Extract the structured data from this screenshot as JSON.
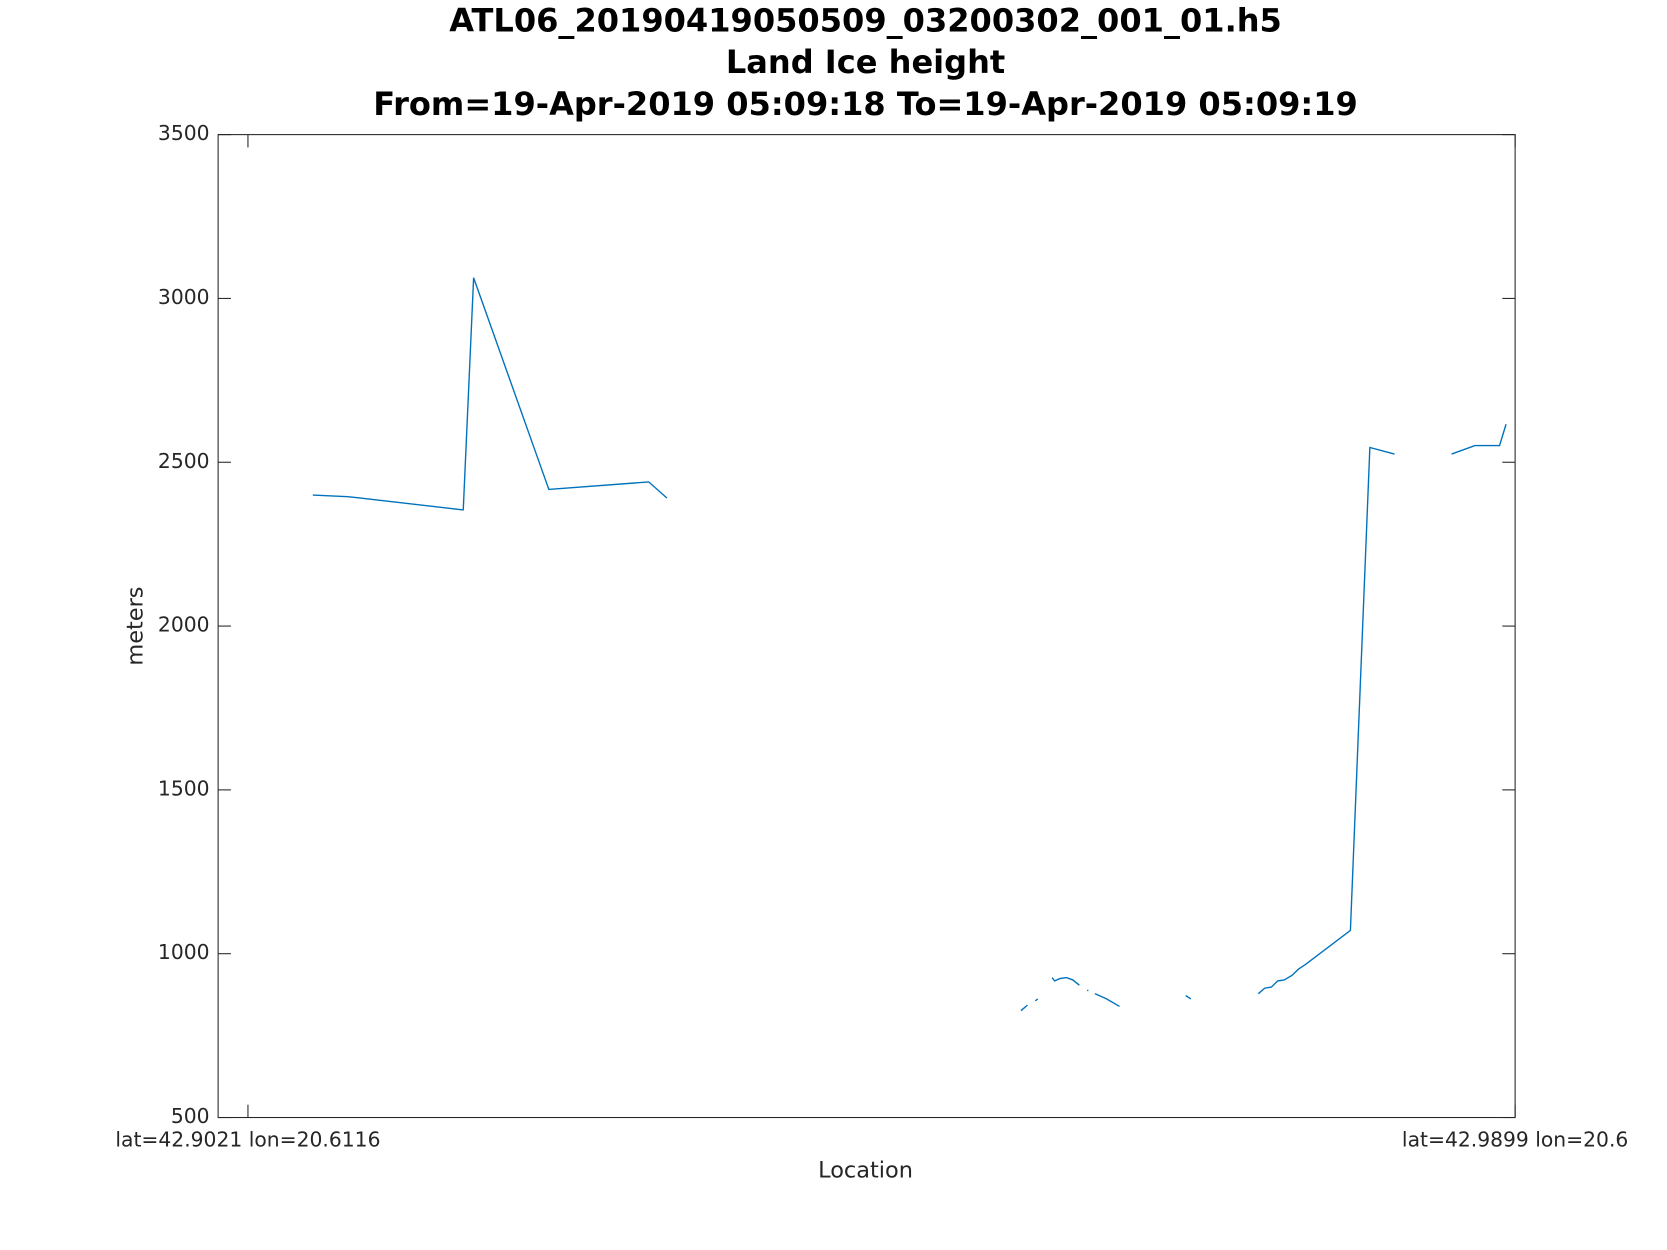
{
  "chart_data": {
    "type": "line",
    "title": [
      "ATL06_20190419050509_03200302_001_01.h5",
      "Land Ice height",
      "From=19-Apr-2019 05:09:18 To=19-Apr-2019 05:09:19"
    ],
    "x_label": "Location",
    "y_label": "meters",
    "xlim": [
      0,
      100
    ],
    "ylim": [
      500,
      3500
    ],
    "xticks": [
      {
        "value": 2.3,
        "label": "lat=42.9021 lon=20.6116"
      },
      {
        "value": 100,
        "label": "lat=42.9899 lon=20.6"
      }
    ],
    "yticks": [
      500,
      1000,
      1500,
      2000,
      2500,
      3000,
      3500
    ],
    "grid": false,
    "series": [
      {
        "color": "#0072bd",
        "x": [
          7.3,
          10.0,
          10.9,
          18.8,
          18.9,
          19.7,
          25.5,
          33.2,
          34.6,
          48.0,
          61.9,
          62.4,
          62.7,
          63.0,
          63.2,
          63.8,
          64.3,
          64.5,
          64.9,
          65.4,
          65.9,
          66.4,
          66.7,
          67.0,
          67.1,
          67.3,
          67.6,
          68.5,
          69.5,
          72.0,
          74.6,
          75.0,
          77.5,
          80.2,
          80.7,
          81.2,
          81.7,
          82.2,
          82.8,
          83.3,
          83.8,
          87.3,
          88.8,
          90.7,
          93.0,
          95.1,
          96.9,
          98.8,
          99.3
        ],
        "values": [
          2400,
          2395,
          2391,
          2355,
          2355,
          3063,
          2417,
          2440,
          2391,
          null,
          826,
          843,
          null,
          856,
          862,
          null,
          927,
          917,
          924,
          927,
          920,
          904,
          null,
          888,
          888,
          null,
          878,
          862,
          839,
          null,
          872,
          862,
          null,
          878,
          895,
          898,
          917,
          920,
          934,
          953,
          966,
          1071,
          2545,
          2525,
          null,
          2525,
          2551,
          2551,
          2616
        ]
      }
    ]
  }
}
